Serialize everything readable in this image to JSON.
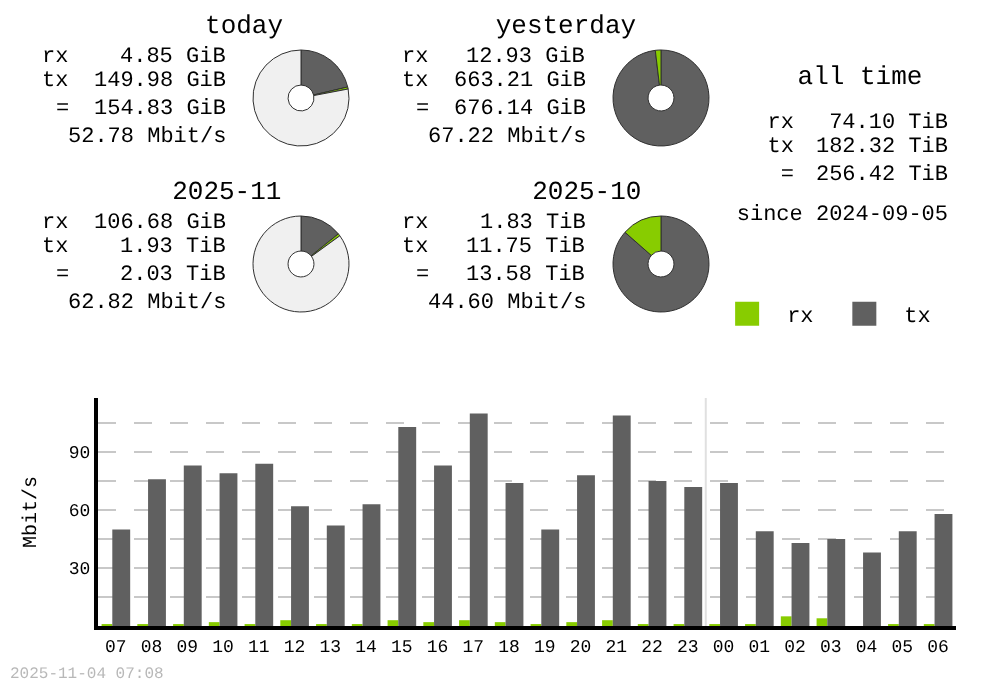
{
  "chart_data": [
    {
      "type": "donut",
      "title": "today",
      "categories": [
        null,
        null,
        null
      ],
      "values": [
        21.3,
        0.7,
        78
      ],
      "colors": [
        "#606060",
        "#88cc00",
        "#f0f0f0"
      ],
      "annotations": [
        "rx",
        "4.85 GiB",
        "tx",
        "149.98 GiB",
        "=",
        "154.83 GiB",
        "52.78 Mbit/s"
      ]
    },
    {
      "type": "donut",
      "title": "yesterday",
      "categories": [
        null,
        null
      ],
      "values": [
        98.1,
        1.9
      ],
      "colors": [
        "#606060",
        "#88cc00"
      ],
      "annotations": [
        "rx",
        "12.93 GiB",
        "tx",
        "663.21 GiB",
        "=",
        "676.14 GiB",
        "67.22 Mbit/s"
      ]
    },
    {
      "type": "donut",
      "title": "2025-11",
      "categories": [
        null,
        null,
        null
      ],
      "values": [
        14.2,
        0.8,
        85
      ],
      "colors": [
        "#606060",
        "#88cc00",
        "#f0f0f0"
      ],
      "annotations": [
        "rx",
        "106.68 GiB",
        "tx",
        "1.93 TiB",
        "=",
        "2.03 TiB",
        "62.82 Mbit/s"
      ]
    },
    {
      "type": "donut",
      "title": "2025-10",
      "categories": [
        null,
        null
      ],
      "values": [
        86.5,
        13.5
      ],
      "colors": [
        "#606060",
        "#88cc00"
      ],
      "annotations": [
        "rx",
        "1.83 TiB",
        "tx",
        "11.75 TiB",
        "=",
        "13.58 TiB",
        "44.60 Mbit/s"
      ]
    },
    {
      "type": "other",
      "title": "all time",
      "annotations": [
        "rx",
        "74.10 TiB",
        "tx",
        "182.32 TiB",
        "=",
        "256.42 TiB",
        "since 2024-09-05"
      ]
    },
    {
      "type": "bar",
      "ylabel": "Mbit/s",
      "categories": [
        "07",
        "08",
        "09",
        "10",
        "11",
        "12",
        "13",
        "14",
        "15",
        "16",
        "17",
        "18",
        "19",
        "20",
        "21",
        "22",
        "23",
        "00",
        "01",
        "02",
        "03",
        "04",
        "05",
        "06"
      ],
      "series": [
        {
          "name": "rx",
          "color": "#88cc00",
          "values": [
            1,
            1,
            1,
            2,
            1,
            3,
            1,
            1,
            3,
            2,
            3,
            2,
            1,
            2,
            3,
            1,
            1,
            1,
            1,
            5,
            4,
            0,
            1,
            1
          ]
        },
        {
          "name": "tx",
          "color": "#606060",
          "values": [
            50,
            76,
            83,
            79,
            84,
            62,
            52,
            63,
            103,
            83,
            110,
            74,
            50,
            78,
            109,
            75,
            72,
            74,
            49,
            43,
            45,
            38,
            49,
            58
          ]
        }
      ],
      "ylim": [
        0,
        118
      ],
      "yticks": [
        {
          "value": 0,
          "label": null
        },
        {
          "value": 15,
          "label": null
        },
        30,
        {
          "value": 45,
          "label": null
        },
        60,
        {
          "value": 75,
          "label": null
        },
        90,
        {
          "value": 105,
          "label": null
        }
      ],
      "grid": "y",
      "legend": "top right",
      "tick_labels": "xy",
      "ref_lines": [
        {
          "axis": "x",
          "value": "00",
          "color": "#e0e0e0"
        }
      ],
      "annotations": [
        "2025-11-04 07:08"
      ]
    }
  ]
}
